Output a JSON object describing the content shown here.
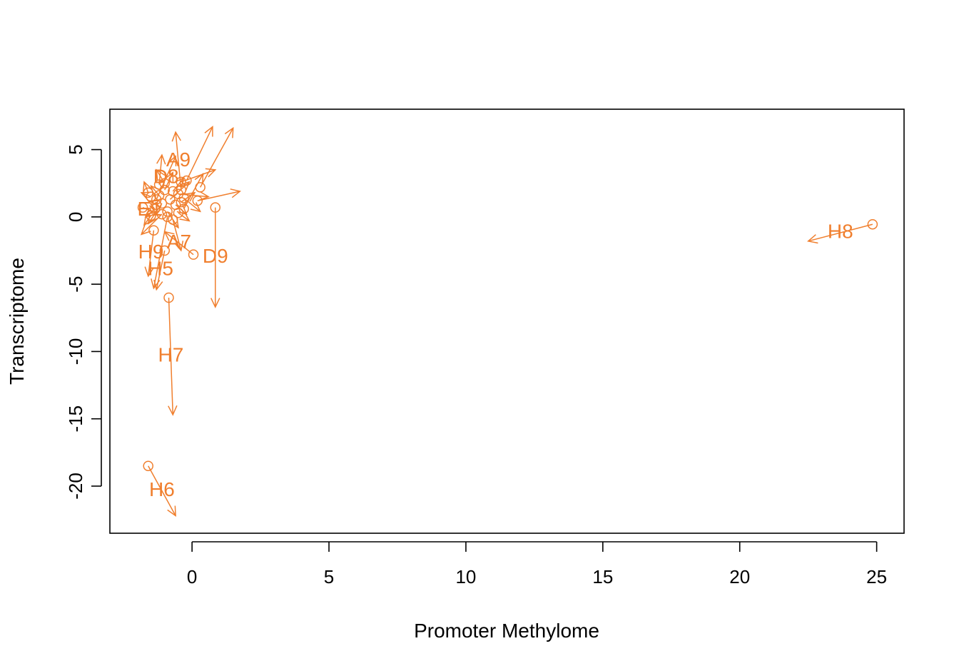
{
  "chart_data": {
    "type": "scatter",
    "title": "",
    "xlabel": "Promoter Methylome",
    "ylabel": "Transcriptome",
    "xlim": [
      -3.0,
      26.0
    ],
    "ylim": [
      -23.5,
      8.0
    ],
    "xticks": [
      0,
      5,
      10,
      15,
      20,
      25
    ],
    "yticks": [
      5,
      0,
      -5,
      -10,
      -15,
      -20
    ],
    "xtick_labels": [
      "0",
      "5",
      "10",
      "15",
      "20",
      "25"
    ],
    "ytick_labels": [
      "5",
      "0",
      "-5",
      "-10",
      "-15",
      "-20"
    ],
    "grid": false,
    "legend": "none",
    "color": "#f07f2e",
    "marker": "open-circle",
    "arrows": [
      {
        "label": "H8",
        "from": [
          24.85,
          -0.55
        ],
        "to": [
          22.5,
          -1.8
        ]
      },
      {
        "label": "H7",
        "from": [
          -0.85,
          -6.0
        ],
        "to": [
          -0.7,
          -14.7
        ]
      },
      {
        "label": "H6",
        "from": [
          -1.6,
          -18.5
        ],
        "to": [
          -0.6,
          -22.2
        ]
      },
      {
        "label": "A7",
        "from": [
          0.05,
          -2.8
        ],
        "to": [
          -1.0,
          -1.1
        ]
      },
      {
        "label": "D9",
        "from": [
          0.85,
          0.7
        ],
        "to": [
          0.85,
          -6.7
        ]
      },
      {
        "label": "A9",
        "from": [
          -0.4,
          2.0
        ],
        "to": [
          -0.6,
          6.3
        ]
      },
      {
        "label": "D8",
        "from": [
          -1.3,
          1.3
        ],
        "to": [
          -0.6,
          4.5
        ]
      },
      {
        "label": "H9",
        "from": [
          -1.4,
          -1.0
        ],
        "to": [
          -1.6,
          -4.4
        ]
      },
      {
        "label": "H5",
        "from": [
          -1.0,
          -2.5
        ],
        "to": [
          -1.3,
          -5.4
        ]
      },
      {
        "label": "E1",
        "from": [
          -1.8,
          0.7
        ],
        "to": [
          -1.3,
          0.3
        ]
      },
      {
        "label": "",
        "from": [
          -0.2,
          2.7
        ],
        "to": [
          0.75,
          6.7
        ]
      },
      {
        "label": "",
        "from": [
          0.3,
          2.2
        ],
        "to": [
          1.5,
          6.6
        ]
      },
      {
        "label": "",
        "from": [
          0.2,
          1.2
        ],
        "to": [
          1.75,
          1.9
        ]
      },
      {
        "label": "",
        "from": [
          -0.9,
          0.0
        ],
        "to": [
          -1.4,
          -5.3
        ]
      },
      {
        "label": "",
        "from": [
          -1.1,
          0.2
        ],
        "to": [
          -1.85,
          -1.3
        ]
      },
      {
        "label": "",
        "from": [
          -1.2,
          2.4
        ],
        "to": [
          -1.1,
          4.6
        ]
      },
      {
        "label": "",
        "from": [
          -0.4,
          2.6
        ],
        "to": [
          0.85,
          3.5
        ]
      },
      {
        "label": "",
        "from": [
          -1.5,
          1.5
        ],
        "to": [
          -1.85,
          1.8
        ]
      },
      {
        "label": "",
        "from": [
          -0.7,
          -0.2
        ],
        "to": [
          -0.4,
          -2.5
        ]
      },
      {
        "label": "",
        "from": [
          -0.3,
          1.4
        ],
        "to": [
          0.3,
          0.4
        ]
      },
      {
        "label": "",
        "from": [
          -1.6,
          1.8
        ],
        "to": [
          -1.75,
          2.6
        ]
      },
      {
        "label": "",
        "from": [
          -1.1,
          1.0
        ],
        "to": [
          -1.6,
          -0.5
        ]
      },
      {
        "label": "",
        "from": [
          -0.5,
          1.7
        ],
        "to": [
          0.6,
          1.5
        ]
      },
      {
        "label": "",
        "from": [
          -0.8,
          1.3
        ],
        "to": [
          -0.1,
          2.6
        ]
      },
      {
        "label": "",
        "from": [
          -1.35,
          0.6
        ],
        "to": [
          -1.7,
          0.0
        ]
      },
      {
        "label": "",
        "from": [
          -0.6,
          0.9
        ],
        "to": [
          -0.2,
          0.2
        ]
      },
      {
        "label": "",
        "from": [
          -1.0,
          2.0
        ],
        "to": [
          -0.7,
          3.3
        ]
      },
      {
        "label": "",
        "from": [
          -0.3,
          0.6
        ],
        "to": [
          0.4,
          3.2
        ]
      },
      {
        "label": "",
        "from": [
          -1.2,
          1.6
        ],
        "to": [
          -1.5,
          2.3
        ]
      },
      {
        "label": "",
        "from": [
          -0.9,
          0.4
        ],
        "to": [
          -0.5,
          -0.8
        ]
      },
      {
        "label": "",
        "from": [
          -1.5,
          0.1
        ],
        "to": [
          -1.75,
          -0.6
        ]
      },
      {
        "label": "",
        "from": [
          -0.4,
          1.1
        ],
        "to": [
          0.1,
          1.8
        ]
      },
      {
        "label": "",
        "from": [
          -1.0,
          2.5
        ],
        "to": [
          -1.3,
          3.5
        ]
      },
      {
        "label": "",
        "from": [
          -0.7,
          1.9
        ],
        "to": [
          -0.3,
          2.9
        ]
      },
      {
        "label": "",
        "from": [
          -1.3,
          0.9
        ],
        "to": [
          -1.6,
          1.2
        ]
      },
      {
        "label": "",
        "from": [
          -0.5,
          0.3
        ],
        "to": [
          -0.1,
          -0.3
        ]
      }
    ]
  }
}
